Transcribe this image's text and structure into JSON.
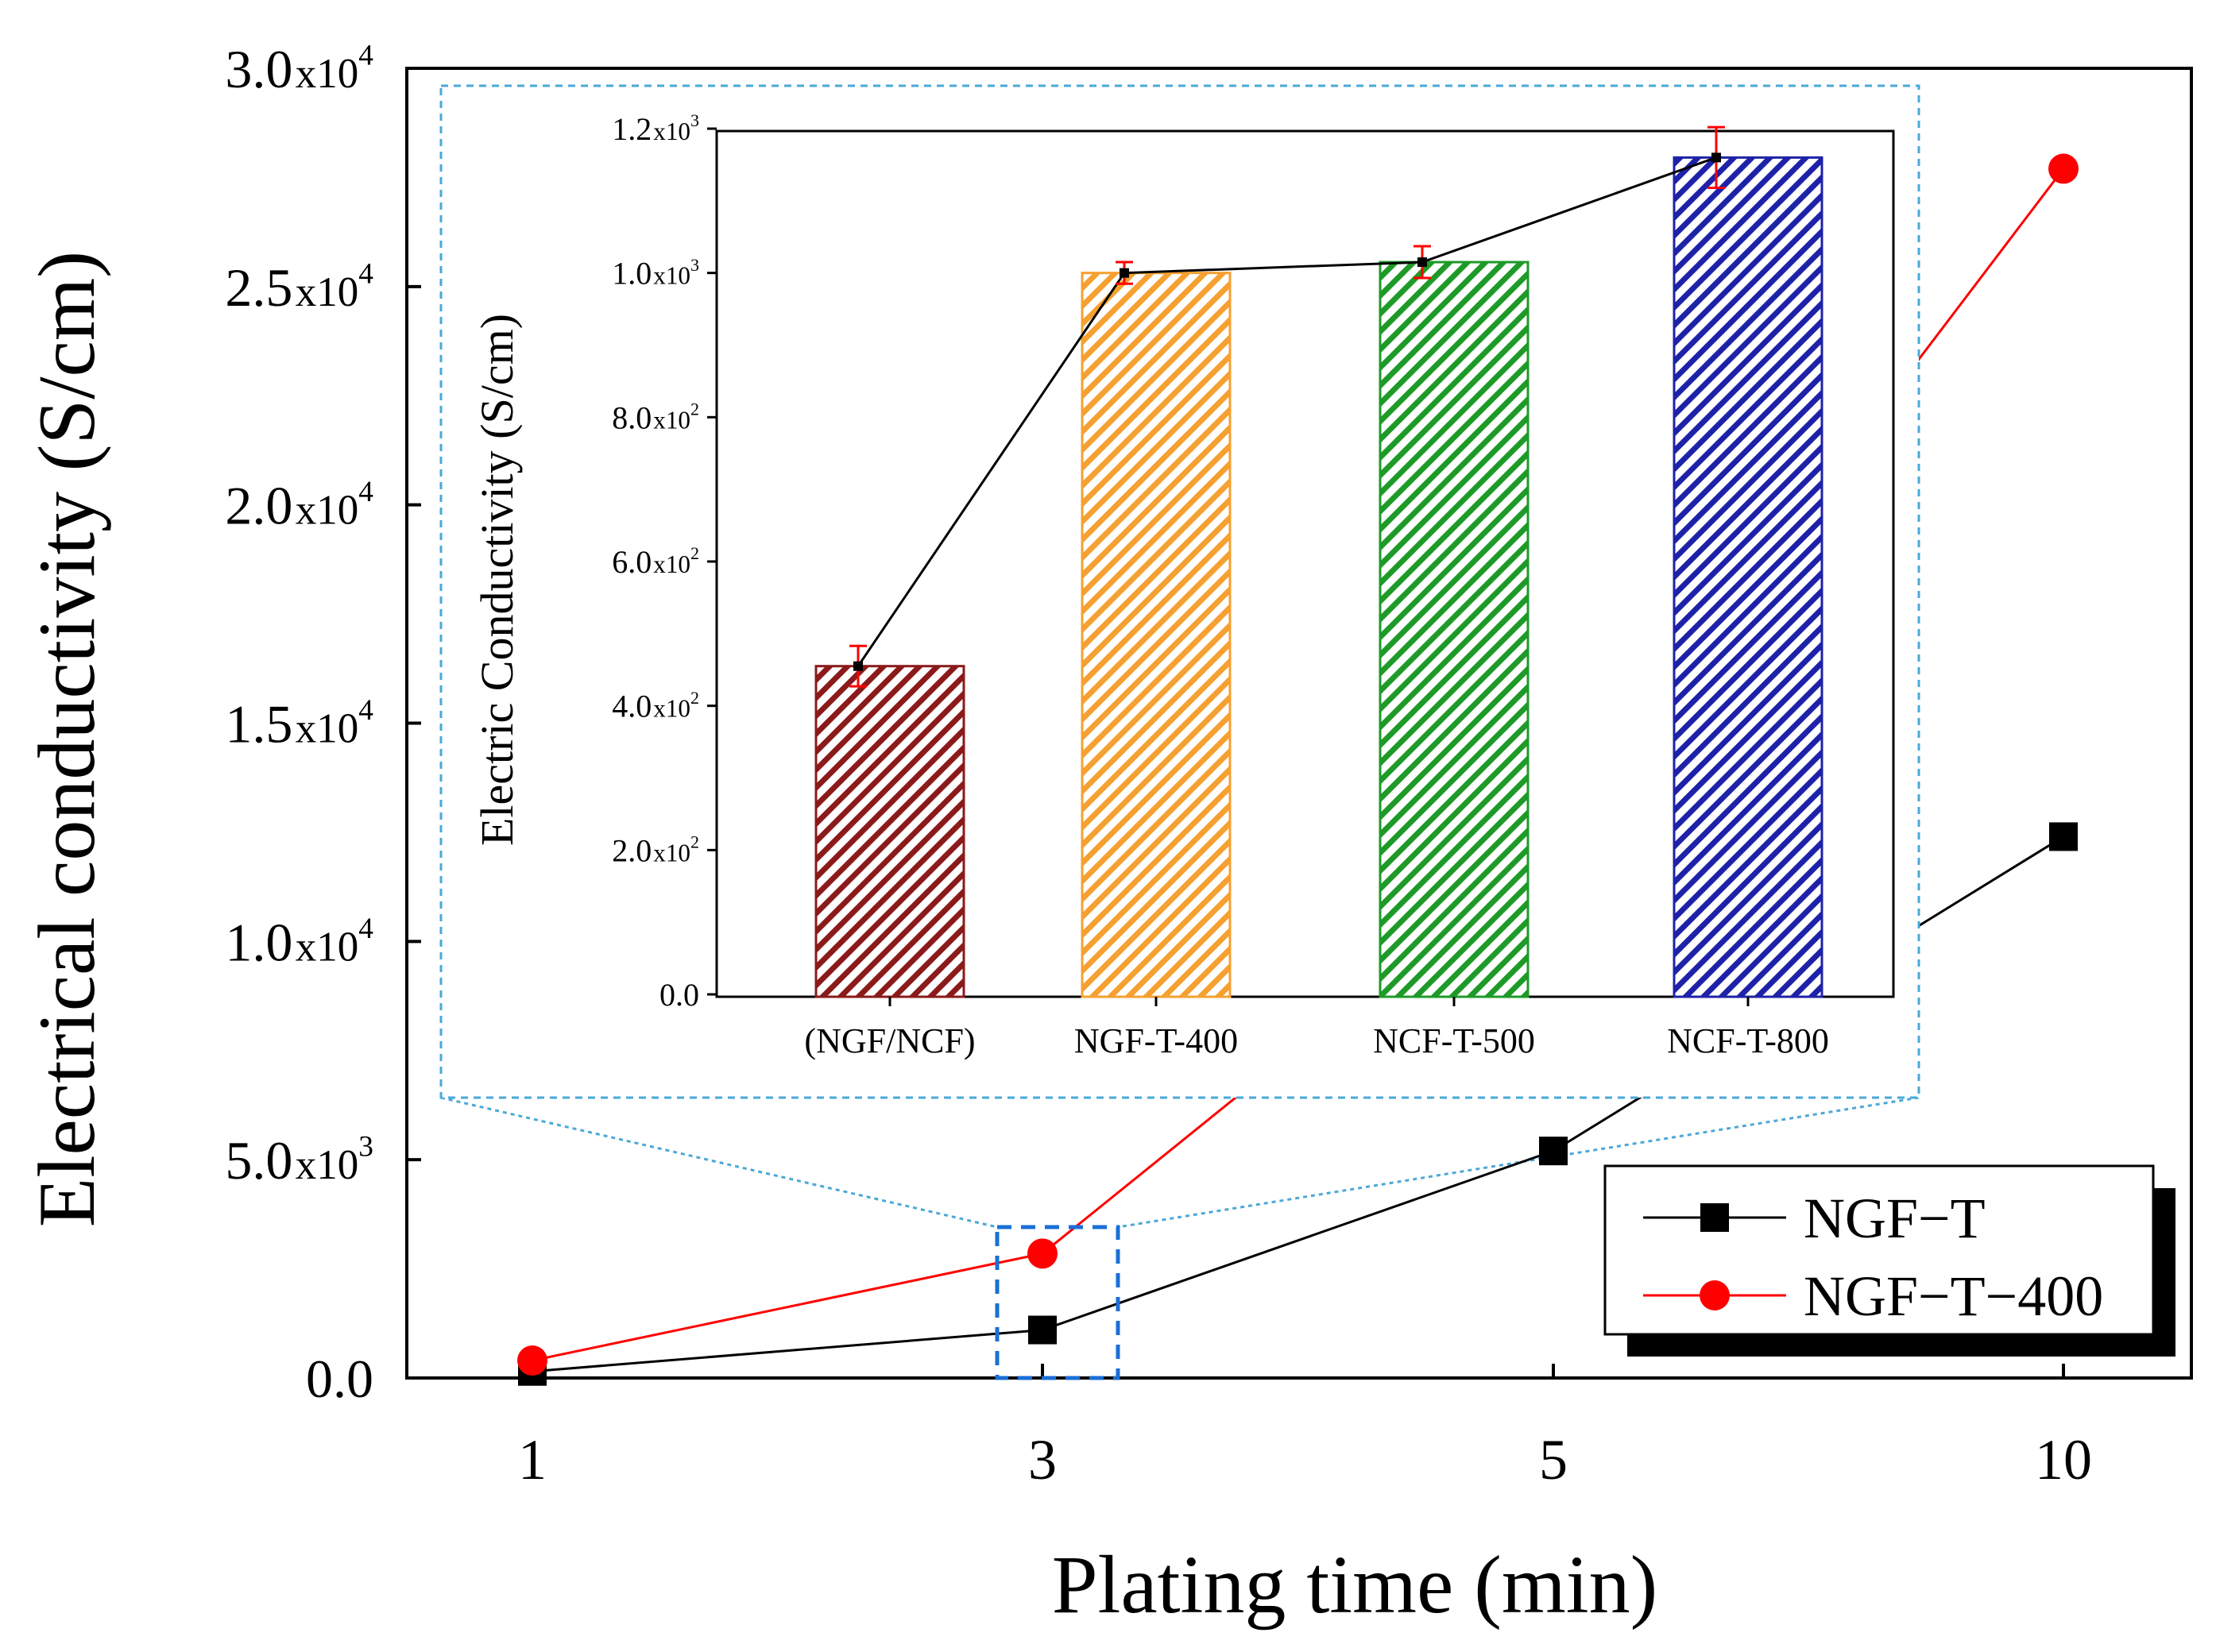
{
  "chart_data": [
    {
      "type": "line",
      "xlabel": "Plating time (min)",
      "ylabel": "Electrical conductivity (S/cm)",
      "categories": [
        "1",
        "3",
        "5",
        "10"
      ],
      "ylim": [
        0,
        30000
      ],
      "yticks": [
        {
          "value": 0,
          "mantissa": "0.0",
          "exp": ""
        },
        {
          "value": 5000,
          "mantissa": "5.0",
          "exp": "3"
        },
        {
          "value": 10000,
          "mantissa": "1.0",
          "exp": "4"
        },
        {
          "value": 15000,
          "mantissa": "1.5",
          "exp": "4"
        },
        {
          "value": 20000,
          "mantissa": "2.0",
          "exp": "4"
        },
        {
          "value": 25000,
          "mantissa": "2.5",
          "exp": "4"
        },
        {
          "value": 30000,
          "mantissa": "3.0",
          "exp": "4"
        }
      ],
      "series": [
        {
          "name": "NGF−T",
          "color": "#000000",
          "marker": "square",
          "values": [
            150,
            1100,
            5200,
            12400
          ]
        },
        {
          "name": "NGF−T−400",
          "color": "#ff0000",
          "marker": "circle",
          "values": [
            400,
            2850,
            12300,
            27700
          ]
        }
      ],
      "legend_position": "bottom-right",
      "highlight_box_color": "#1a6fd6",
      "inset_frame_color": "#4aa8d8"
    },
    {
      "type": "bar",
      "ylabel": "Electric Conductivity (S/cm)",
      "categories": [
        "(NGF/NCF)",
        "NGF-T-400",
        "NCF-T-500",
        "NCF-T-800"
      ],
      "values": [
        455,
        1000,
        1015,
        1160
      ],
      "errors": [
        28,
        15,
        22,
        42
      ],
      "bar_colors": [
        "#8b1a1a",
        "#f5a030",
        "#1e9a28",
        "#1e22a8"
      ],
      "hatch": "diagonal",
      "ylim": [
        0,
        1200
      ],
      "yticks": [
        {
          "value": 0,
          "mantissa": "0.0",
          "exp": ""
        },
        {
          "value": 200,
          "mantissa": "2.0",
          "exp": "2"
        },
        {
          "value": 400,
          "mantissa": "4.0",
          "exp": "2"
        },
        {
          "value": 600,
          "mantissa": "6.0",
          "exp": "2"
        },
        {
          "value": 800,
          "mantissa": "8.0",
          "exp": "2"
        },
        {
          "value": 1000,
          "mantissa": "1.0",
          "exp": "3"
        },
        {
          "value": 1200,
          "mantissa": "1.2",
          "exp": "3"
        }
      ],
      "line_color": "#000000",
      "error_color": "#ff0000"
    }
  ]
}
